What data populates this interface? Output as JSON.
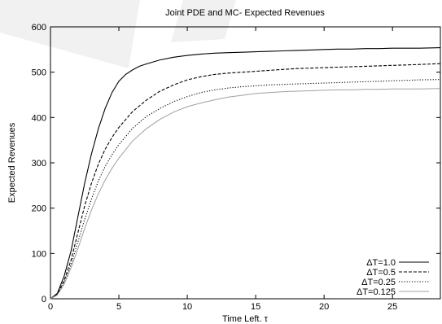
{
  "chart_data": {
    "type": "line",
    "title": "Joint PDE and MC- Expected Revenues",
    "xlabel": "Time Left. τ",
    "ylabel": "Expected Revenues",
    "xlim": [
      0,
      28.5
    ],
    "ylim": [
      0,
      600
    ],
    "xticks": [
      0,
      5,
      10,
      15,
      20,
      25
    ],
    "yticks": [
      0,
      100,
      200,
      300,
      400,
      500,
      600
    ],
    "grid": false,
    "legend_position": "bottom-right",
    "colors": {
      "line1": "#000000",
      "line2": "#000000",
      "line3": "#000000",
      "line4": "#a0a0a0",
      "watermark": "#e4e4e4"
    },
    "series": [
      {
        "name": "ΔT=1.0",
        "style": "solid",
        "x": [
          0,
          0.5,
          1,
          1.5,
          2,
          2.5,
          3,
          3.5,
          4,
          4.5,
          5,
          5.5,
          6,
          6.5,
          7,
          8,
          9,
          10,
          11,
          12,
          13,
          14,
          15,
          16,
          17,
          18,
          19,
          20,
          21,
          22,
          23,
          24,
          25,
          26,
          27,
          28.5
        ],
        "y": [
          0,
          12,
          50,
          105,
          180,
          255,
          320,
          375,
          420,
          455,
          480,
          495,
          505,
          513,
          518,
          527,
          533,
          537,
          540,
          542,
          543,
          544,
          545,
          546,
          547,
          548,
          549,
          550,
          551,
          551,
          552,
          552,
          553,
          553,
          553,
          554
        ]
      },
      {
        "name": "ΔT=0.5",
        "style": "dashed",
        "x": [
          0,
          0.5,
          1,
          1.5,
          2,
          2.5,
          3,
          3.5,
          4,
          4.5,
          5,
          6,
          7,
          8,
          9,
          10,
          11,
          12,
          13,
          14,
          15,
          16,
          17,
          18,
          19,
          20,
          21,
          22,
          23,
          24,
          25,
          26,
          27,
          28.5
        ],
        "y": [
          0,
          10,
          40,
          85,
          145,
          205,
          255,
          297,
          330,
          356,
          378,
          413,
          438,
          458,
          472,
          483,
          490,
          495,
          498,
          500,
          502,
          504,
          506,
          508,
          509,
          510,
          511,
          512,
          513,
          514,
          515,
          516,
          517,
          519
        ]
      },
      {
        "name": "ΔT=0.25",
        "style": "dotted",
        "x": [
          0,
          0.5,
          1,
          1.5,
          2,
          2.5,
          3,
          3.5,
          4,
          4.5,
          5,
          6,
          7,
          8,
          9,
          10,
          11,
          12,
          13,
          14,
          15,
          16,
          17,
          18,
          19,
          20,
          21,
          22,
          23,
          24,
          25,
          26,
          27,
          28.5
        ],
        "y": [
          0,
          9,
          35,
          75,
          125,
          175,
          220,
          260,
          292,
          318,
          340,
          376,
          402,
          420,
          435,
          446,
          455,
          461,
          465,
          468,
          470,
          472,
          473,
          474,
          475,
          476,
          477,
          478,
          479,
          480,
          481,
          482,
          483,
          484
        ]
      },
      {
        "name": "ΔT=0.125",
        "style": "solid-gray",
        "x": [
          0,
          0.5,
          1,
          1.5,
          2,
          2.5,
          3,
          3.5,
          4,
          4.5,
          5,
          6,
          7,
          8,
          9,
          10,
          11,
          12,
          13,
          14,
          15,
          16,
          17,
          18,
          19,
          20,
          21,
          22,
          23,
          24,
          25,
          26,
          27,
          28.5
        ],
        "y": [
          0,
          8,
          32,
          68,
          110,
          155,
          196,
          232,
          262,
          288,
          310,
          348,
          375,
          396,
          412,
          424,
          432,
          439,
          445,
          449,
          453,
          455,
          457,
          458,
          459,
          460,
          461,
          461,
          462,
          462,
          463,
          463,
          463,
          464
        ]
      }
    ]
  }
}
